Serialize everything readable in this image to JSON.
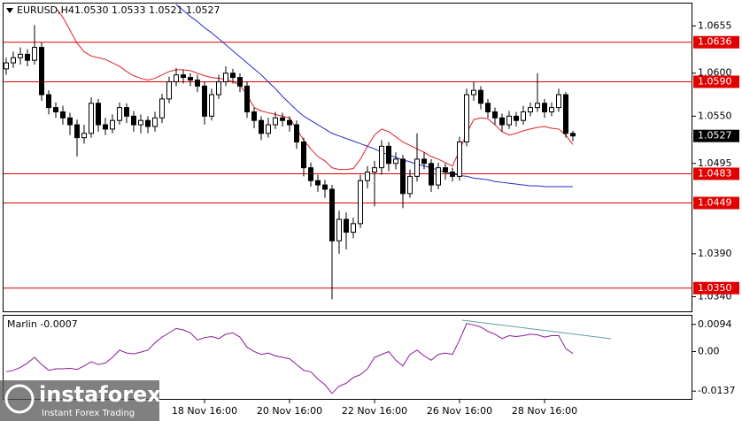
{
  "chart_data": [
    {
      "type": "candlestick",
      "title": "EURUSD,H4",
      "info": "1.0530 1.0533 1.0521 1.0527",
      "open": [
        1.0605,
        1.0612,
        1.0618,
        1.0622,
        1.0615,
        1.063,
        1.0575,
        1.056,
        1.0555,
        1.0548,
        1.054,
        1.0525,
        1.053,
        1.0565,
        1.054,
        1.0535,
        1.0545,
        1.056,
        1.055,
        1.054,
        1.0545,
        1.0538,
        1.0548,
        1.057,
        1.059,
        1.0598,
        1.0595,
        1.0592,
        1.0585,
        1.055,
        1.0575,
        1.059,
        1.06,
        1.0595,
        1.0585,
        1.0555,
        1.0545,
        1.053,
        1.054,
        1.0548,
        1.0545,
        1.054,
        1.052,
        1.049,
        1.0475,
        1.047,
        1.0465,
        1.0405,
        1.043,
        1.0415,
        1.0425,
        1.0475,
        1.0485,
        1.049,
        1.0515,
        1.0495,
        1.05,
        1.046,
        1.048,
        1.05,
        1.0495,
        1.047,
        1.049,
        1.0485,
        1.048,
        1.052,
        1.0575,
        1.058,
        1.0565,
        1.0555,
        1.0548,
        1.054,
        1.055,
        1.0545,
        1.0555,
        1.056,
        1.0565,
        1.0555,
        1.056,
        1.0575,
        1.053
      ],
      "high": [
        1.0618,
        1.0625,
        1.063,
        1.0628,
        1.0656,
        1.0636,
        1.058,
        1.0566,
        1.0562,
        1.0554,
        1.0546,
        1.054,
        1.0572,
        1.057,
        1.0548,
        1.0552,
        1.0566,
        1.0565,
        1.0556,
        1.0552,
        1.055,
        1.0555,
        1.0576,
        1.0596,
        1.0606,
        1.0604,
        1.06,
        1.0598,
        1.059,
        1.0582,
        1.0598,
        1.0608,
        1.0605,
        1.06,
        1.059,
        1.056,
        1.055,
        1.0548,
        1.0555,
        1.0554,
        1.055,
        1.0545,
        1.0525,
        1.0496,
        1.0482,
        1.0476,
        1.047,
        1.044,
        1.0438,
        1.0432,
        1.0482,
        1.0492,
        1.0498,
        1.0522,
        1.052,
        1.0508,
        1.0505,
        1.0488,
        1.053,
        1.0508,
        1.05,
        1.0496,
        1.0495,
        1.049,
        1.0526,
        1.0582,
        1.059,
        1.0585,
        1.057,
        1.056,
        1.0553,
        1.0556,
        1.0555,
        1.0562,
        1.0566,
        1.06,
        1.057,
        1.0566,
        1.0582,
        1.0578,
        1.0533
      ],
      "low": [
        1.0598,
        1.0606,
        1.061,
        1.0608,
        1.061,
        1.0568,
        1.0552,
        1.0548,
        1.054,
        1.0528,
        1.0503,
        1.0518,
        1.0525,
        1.0532,
        1.0528,
        1.053,
        1.054,
        1.0542,
        1.0532,
        1.053,
        1.053,
        1.0532,
        1.0542,
        1.0565,
        1.0585,
        1.0588,
        1.0585,
        1.0578,
        1.054,
        1.0545,
        1.057,
        1.0585,
        1.0588,
        1.0578,
        1.0548,
        1.0536,
        1.0522,
        1.0525,
        1.0535,
        1.0538,
        1.0532,
        1.0512,
        1.048,
        1.0468,
        1.0462,
        1.0455,
        1.0337,
        1.039,
        1.0395,
        1.0408,
        1.042,
        1.0466,
        1.0445,
        1.0482,
        1.0486,
        1.0488,
        1.0443,
        1.0455,
        1.0474,
        1.0488,
        1.0462,
        1.0465,
        1.0476,
        1.0474,
        1.0475,
        1.0515,
        1.0568,
        1.0558,
        1.0548,
        1.054,
        1.0532,
        1.0535,
        1.0538,
        1.054,
        1.055,
        1.0555,
        1.0548,
        1.055,
        1.0555,
        1.0525,
        1.0521
      ],
      "close": [
        1.0612,
        1.0618,
        1.0622,
        1.0615,
        1.063,
        1.0575,
        1.056,
        1.0555,
        1.0548,
        1.054,
        1.0525,
        1.053,
        1.0565,
        1.054,
        1.0535,
        1.0545,
        1.056,
        1.055,
        1.054,
        1.0545,
        1.0538,
        1.0548,
        1.057,
        1.059,
        1.0598,
        1.0595,
        1.0592,
        1.0585,
        1.055,
        1.0575,
        1.059,
        1.06,
        1.0595,
        1.0585,
        1.0555,
        1.0545,
        1.053,
        1.054,
        1.0548,
        1.0545,
        1.054,
        1.052,
        1.049,
        1.0475,
        1.047,
        1.0465,
        1.0405,
        1.043,
        1.0415,
        1.0425,
        1.0475,
        1.0485,
        1.049,
        1.0515,
        1.0495,
        1.05,
        1.046,
        1.048,
        1.05,
        1.0495,
        1.047,
        1.049,
        1.0485,
        1.048,
        1.052,
        1.0575,
        1.058,
        1.0565,
        1.0555,
        1.0548,
        1.054,
        1.055,
        1.0545,
        1.0555,
        1.056,
        1.0565,
        1.0555,
        1.056,
        1.0575,
        1.053,
        1.0527
      ],
      "bull_color": "#ffffff",
      "bear_color": "#000000",
      "series": [
        {
          "color": "#e0202a",
          "values": [
            null,
            null,
            null,
            null,
            null,
            null,
            null,
            1.0676,
            1.0665,
            1.065,
            1.0635,
            1.0625,
            1.062,
            1.0618,
            1.0616,
            1.0612,
            1.0608,
            1.0602,
            1.0597,
            1.0594,
            1.0592,
            1.0594,
            1.0598,
            1.0602,
            1.0604,
            1.0604,
            1.0603,
            1.06,
            1.0597,
            1.0595,
            1.0594,
            1.0593,
            1.059,
            1.0586,
            1.0575,
            1.056,
            1.0556,
            1.0554,
            1.0552,
            1.055,
            1.0548,
            1.0535,
            1.0522,
            1.0512,
            1.0503,
            1.0498,
            1.049,
            1.0488,
            1.0488,
            1.0489,
            1.05,
            1.0515,
            1.0528,
            1.0535,
            1.0532,
            1.0526,
            1.052,
            1.0516,
            1.0512,
            1.0508,
            1.0503,
            1.05,
            1.0496,
            1.0492,
            1.051,
            1.053,
            1.0546,
            1.0548,
            1.0547,
            1.054,
            1.0532,
            1.0528,
            1.053,
            1.0533,
            1.0535,
            1.0537,
            1.0538,
            1.0536,
            1.0535,
            1.0528,
            1.0517
          ]
        },
        {
          "color": "#2a2acc",
          "values": [
            null,
            null,
            null,
            null,
            null,
            null,
            null,
            null,
            null,
            null,
            null,
            null,
            null,
            null,
            null,
            null,
            null,
            null,
            null,
            null,
            null,
            null,
            null,
            null,
            1.068,
            1.0673,
            1.0666,
            1.066,
            1.0653,
            1.0647,
            1.064,
            1.0633,
            1.0626,
            1.0619,
            1.0612,
            1.0605,
            1.0598,
            1.059,
            1.0582,
            1.0573,
            1.0565,
            1.0557,
            1.055,
            1.0545,
            1.054,
            1.0535,
            1.053,
            1.0527,
            1.0524,
            1.0521,
            1.0518,
            1.0515,
            1.0512,
            1.0508,
            1.0505,
            1.0502,
            1.0499,
            1.0497,
            1.0494,
            1.0492,
            1.049,
            1.0487,
            1.0485,
            1.0483,
            1.0481,
            1.048,
            1.0478,
            1.0477,
            1.0476,
            1.0474,
            1.0473,
            1.0472,
            1.0471,
            1.047,
            1.0469,
            1.0469,
            1.0468,
            1.0468,
            1.0468,
            1.0468,
            1.0468
          ]
        }
      ],
      "levels": [
        {
          "value": 1.0636,
          "label": "1.0636"
        },
        {
          "value": 1.059,
          "label": "1.0590"
        },
        {
          "value": 1.0483,
          "label": "1.0483"
        },
        {
          "value": 1.0449,
          "label": "1.0449"
        },
        {
          "value": 1.035,
          "label": "1.0350"
        }
      ],
      "level_color": "#e00000",
      "last_price": {
        "value": 1.0527,
        "label": "1.0527"
      },
      "ylim": [
        1.0323,
        1.0681
      ],
      "yticks": [
        1.0655,
        {
          "value": 1.06,
          "label": "1.0600"
        },
        {
          "value": 1.055,
          "label": "1.0550"
        },
        1.0495,
        {
          "value": 1.039,
          "label": "1.0390"
        },
        {
          "value": 1.034,
          "label": "1.0340"
        }
      ],
      "xticks": [
        {
          "value": 28,
          "label": "18 Nov 16:00"
        },
        {
          "value": 40,
          "label": "20 Nov 16:00"
        },
        {
          "value": 52,
          "label": "22 Nov 16:00"
        },
        {
          "value": 64,
          "label": "26 Nov 16:00"
        },
        {
          "value": 76,
          "label": "28 Nov 16:00"
        }
      ]
    },
    {
      "type": "line",
      "title": "Marlin -0.0007",
      "color": "#8b1a9b",
      "values": [
        -0.007,
        -0.0065,
        -0.0055,
        -0.004,
        -0.002,
        -0.0045,
        -0.0065,
        -0.006,
        -0.006,
        -0.0058,
        -0.0062,
        -0.005,
        -0.0035,
        -0.0045,
        -0.004,
        -0.002,
        0.0005,
        -0.0005,
        -0.0008,
        -0.0002,
        0.0005,
        0.003,
        0.005,
        0.0065,
        0.008,
        0.0075,
        0.0065,
        0.004,
        0.0048,
        0.0052,
        0.0045,
        0.006,
        0.0065,
        0.005,
        0.0015,
        0,
        -0.001,
        -0.0005,
        -0.0015,
        -0.002,
        -0.0025,
        -0.0045,
        -0.0065,
        -0.007,
        -0.0095,
        -0.0115,
        -0.0145,
        -0.012,
        -0.011,
        -0.009,
        -0.008,
        -0.006,
        -0.002,
        -0.001,
        0,
        -0.003,
        -0.005,
        -0.001,
        0.0005,
        -0.0015,
        -0.003,
        -0.001,
        -0.0005,
        -0.001,
        0.004,
        0.0097,
        0.0092,
        0.0085,
        0.007,
        0.006,
        0.0045,
        0.0055,
        0.0052,
        0.0055,
        0.006,
        0.0058,
        0.005,
        0.0055,
        0.0055,
        0.001,
        -0.0007
      ],
      "ylim": [
        -0.0164,
        0.0124
      ],
      "yticks": [
        0.0094,
        {
          "value": 0,
          "label": "0.00"
        },
        -0.0137
      ]
    }
  ],
  "watermark": {
    "name": "instaforex",
    "tagline": "Instant Forex Trading"
  }
}
